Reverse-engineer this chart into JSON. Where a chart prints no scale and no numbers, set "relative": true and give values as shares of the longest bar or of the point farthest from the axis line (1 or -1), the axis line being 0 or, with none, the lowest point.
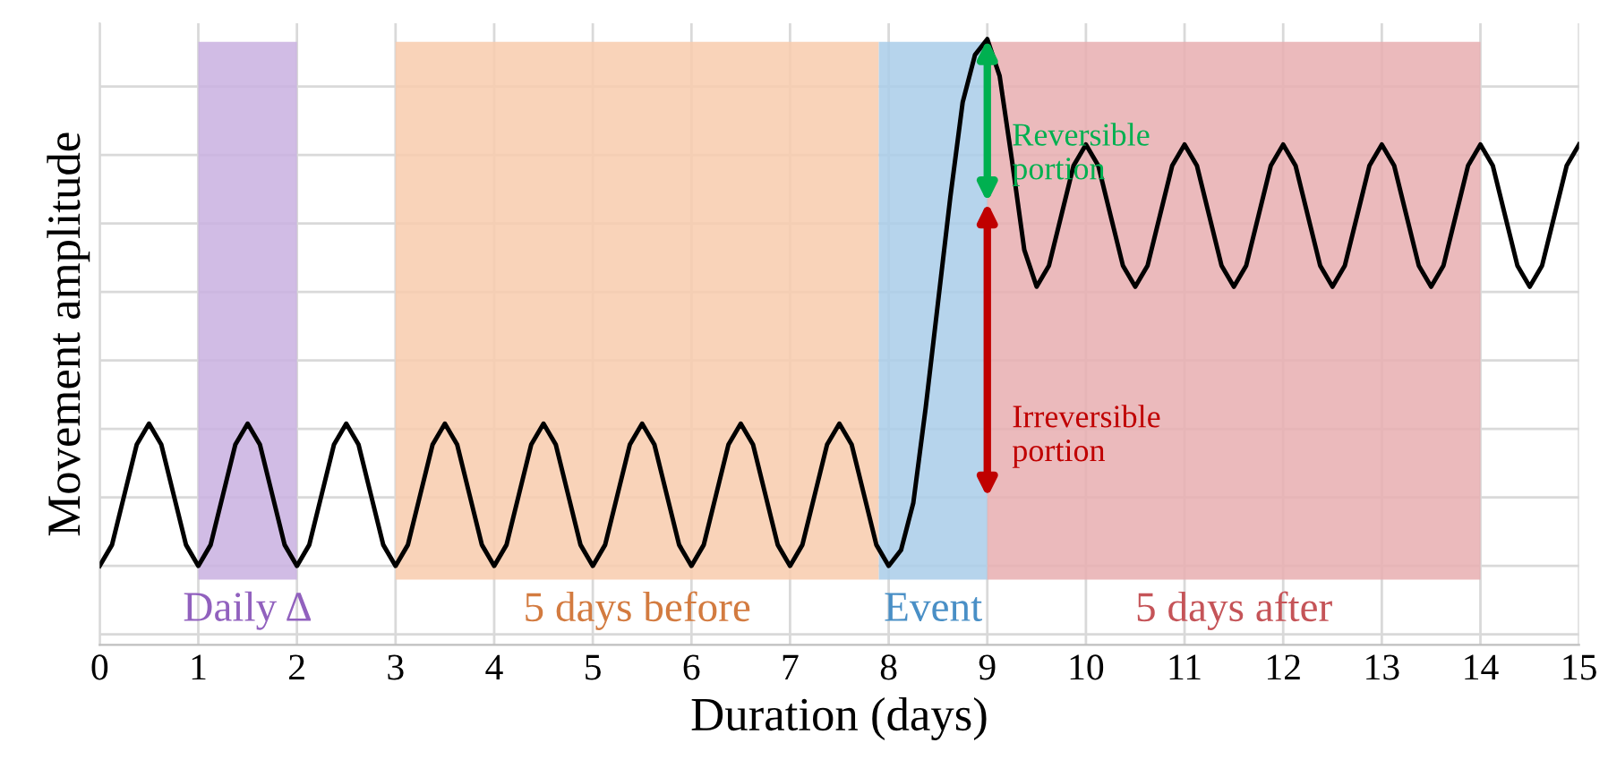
{
  "chart_data": {
    "type": "line",
    "relative": true,
    "xlabel": "Duration (days)",
    "ylabel": "Movement amplitude",
    "xlim": [
      0,
      15
    ],
    "xticks": [
      0,
      1,
      2,
      3,
      4,
      5,
      6,
      7,
      8,
      9,
      10,
      11,
      12,
      13,
      14,
      15
    ],
    "grid": true,
    "tick_labels": "x",
    "legend": false,
    "series": [
      {
        "color": "#000000",
        "x": [
          0,
          0.125,
          0.25,
          0.375,
          0.5,
          0.625,
          0.75,
          0.875,
          1,
          1.125,
          1.25,
          1.375,
          1.5,
          1.625,
          1.75,
          1.875,
          2,
          2.125,
          2.25,
          2.375,
          2.5,
          2.625,
          2.75,
          2.875,
          3,
          3.125,
          3.25,
          3.375,
          3.5,
          3.625,
          3.75,
          3.875,
          4,
          4.125,
          4.25,
          4.375,
          4.5,
          4.625,
          4.75,
          4.875,
          5,
          5.125,
          5.25,
          5.375,
          5.5,
          5.625,
          5.75,
          5.875,
          6,
          6.125,
          6.25,
          6.375,
          6.5,
          6.625,
          6.75,
          6.875,
          7,
          7.125,
          7.25,
          7.375,
          7.5,
          7.625,
          7.75,
          7.875,
          8,
          8.125,
          8.25,
          8.375,
          8.5,
          8.625,
          8.75,
          8.875,
          9,
          9.125,
          9.25,
          9.375,
          9.5,
          9.625,
          9.75,
          9.875,
          10,
          10.125,
          10.25,
          10.375,
          10.5,
          10.625,
          10.75,
          10.875,
          11,
          11.125,
          11.25,
          11.375,
          11.5,
          11.625,
          11.75,
          11.875,
          12,
          12.125,
          12.25,
          12.375,
          12.5,
          12.625,
          12.75,
          12.875,
          13,
          13.125,
          13.25,
          13.375,
          13.5,
          13.625,
          13.75,
          13.875,
          14,
          14.125,
          14.25,
          14.375,
          14.5,
          14.625,
          14.75,
          14.875,
          15
        ],
        "values": [
          0,
          0.04,
          0.135,
          0.23,
          0.27,
          0.23,
          0.135,
          0.04,
          0,
          0.04,
          0.135,
          0.23,
          0.27,
          0.23,
          0.135,
          0.04,
          0,
          0.04,
          0.135,
          0.23,
          0.27,
          0.23,
          0.135,
          0.04,
          0,
          0.04,
          0.135,
          0.23,
          0.27,
          0.23,
          0.135,
          0.04,
          0,
          0.04,
          0.135,
          0.23,
          0.27,
          0.23,
          0.135,
          0.04,
          0,
          0.04,
          0.135,
          0.23,
          0.27,
          0.23,
          0.135,
          0.04,
          0,
          0.04,
          0.135,
          0.23,
          0.27,
          0.23,
          0.135,
          0.04,
          0,
          0.04,
          0.135,
          0.23,
          0.27,
          0.23,
          0.135,
          0.04,
          0,
          0.03,
          0.12,
          0.3,
          0.5,
          0.7,
          0.88,
          0.97,
          1,
          0.93,
          0.77,
          0.6,
          0.53,
          0.57,
          0.665,
          0.76,
          0.8,
          0.76,
          0.665,
          0.57,
          0.53,
          0.57,
          0.665,
          0.76,
          0.8,
          0.76,
          0.665,
          0.57,
          0.53,
          0.57,
          0.665,
          0.76,
          0.8,
          0.76,
          0.665,
          0.57,
          0.53,
          0.57,
          0.665,
          0.76,
          0.8,
          0.76,
          0.665,
          0.57,
          0.53,
          0.57,
          0.665,
          0.76,
          0.8,
          0.76,
          0.665,
          0.57,
          0.53,
          0.57,
          0.665,
          0.76,
          0.8
        ]
      }
    ],
    "bands": [
      {
        "axis": "x",
        "from": 1,
        "to": 2,
        "label": "Daily Δ",
        "color": "#c9b0e0"
      },
      {
        "axis": "x",
        "from": 3,
        "to": 7.9,
        "label": "5 days before",
        "color": "#f8cbad"
      },
      {
        "axis": "x",
        "from": 7.9,
        "to": 9,
        "label": "Event",
        "color": "#a9cde9"
      },
      {
        "axis": "x",
        "from": 9,
        "to": 14,
        "label": "5 days after",
        "color": "#e8aeb0"
      }
    ],
    "annotations": [
      {
        "text": "Reversible\nportion",
        "x": 9,
        "y": 0.69
      },
      {
        "text": "Irreversible\nportion",
        "x": 9,
        "y": 0.13
      }
    ]
  }
}
